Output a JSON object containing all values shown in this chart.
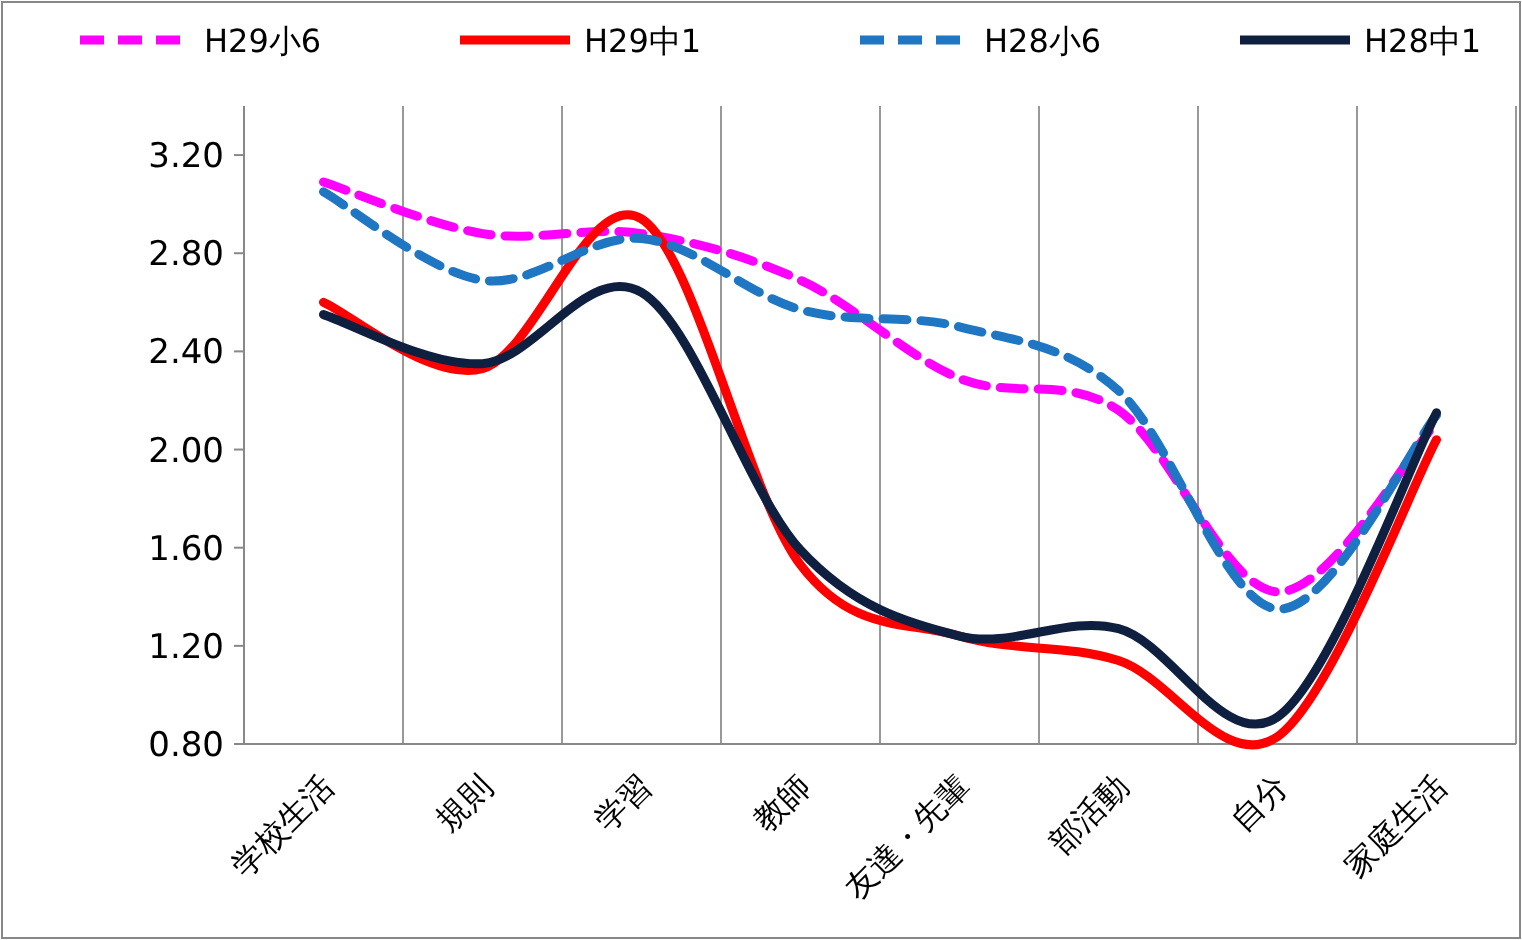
{
  "chart_data": {
    "type": "line",
    "categories": [
      "学校生活",
      "規則",
      "学習",
      "教師",
      "友達・先輩",
      "部活動",
      "自分",
      "家庭生活"
    ],
    "series": [
      {
        "name": "H29小6",
        "color": "#ff00ff",
        "line_style": "dashed",
        "values": [
          3.09,
          2.88,
          2.88,
          2.69,
          2.29,
          2.16,
          1.42,
          2.11
        ]
      },
      {
        "name": "H29中1",
        "color": "#ff0000",
        "line_style": "solid",
        "values": [
          2.6,
          2.33,
          2.94,
          1.53,
          1.24,
          1.14,
          0.83,
          2.04
        ]
      },
      {
        "name": "H28小6",
        "color": "#1f77c4",
        "line_style": "dashed",
        "values": [
          3.05,
          2.69,
          2.86,
          2.57,
          2.5,
          2.24,
          1.35,
          2.14
        ]
      },
      {
        "name": "H28中1",
        "color": "#0f1f40",
        "line_style": "solid",
        "values": [
          2.55,
          2.35,
          2.64,
          1.59,
          1.24,
          1.27,
          0.91,
          2.15
        ]
      }
    ],
    "ylim": [
      0.8,
      3.4
    ],
    "yticks": [
      {
        "value": 0.8,
        "label": "0.80"
      },
      {
        "value": 1.2,
        "label": "1.20"
      },
      {
        "value": 1.6,
        "label": "1.60"
      },
      {
        "value": 2.0,
        "label": "2.00"
      },
      {
        "value": 2.4,
        "label": "2.40"
      },
      {
        "value": 2.8,
        "label": "2.80"
      },
      {
        "value": 3.2,
        "label": "3.20"
      }
    ],
    "grid": "x",
    "legend": "top",
    "marker": "none"
  }
}
